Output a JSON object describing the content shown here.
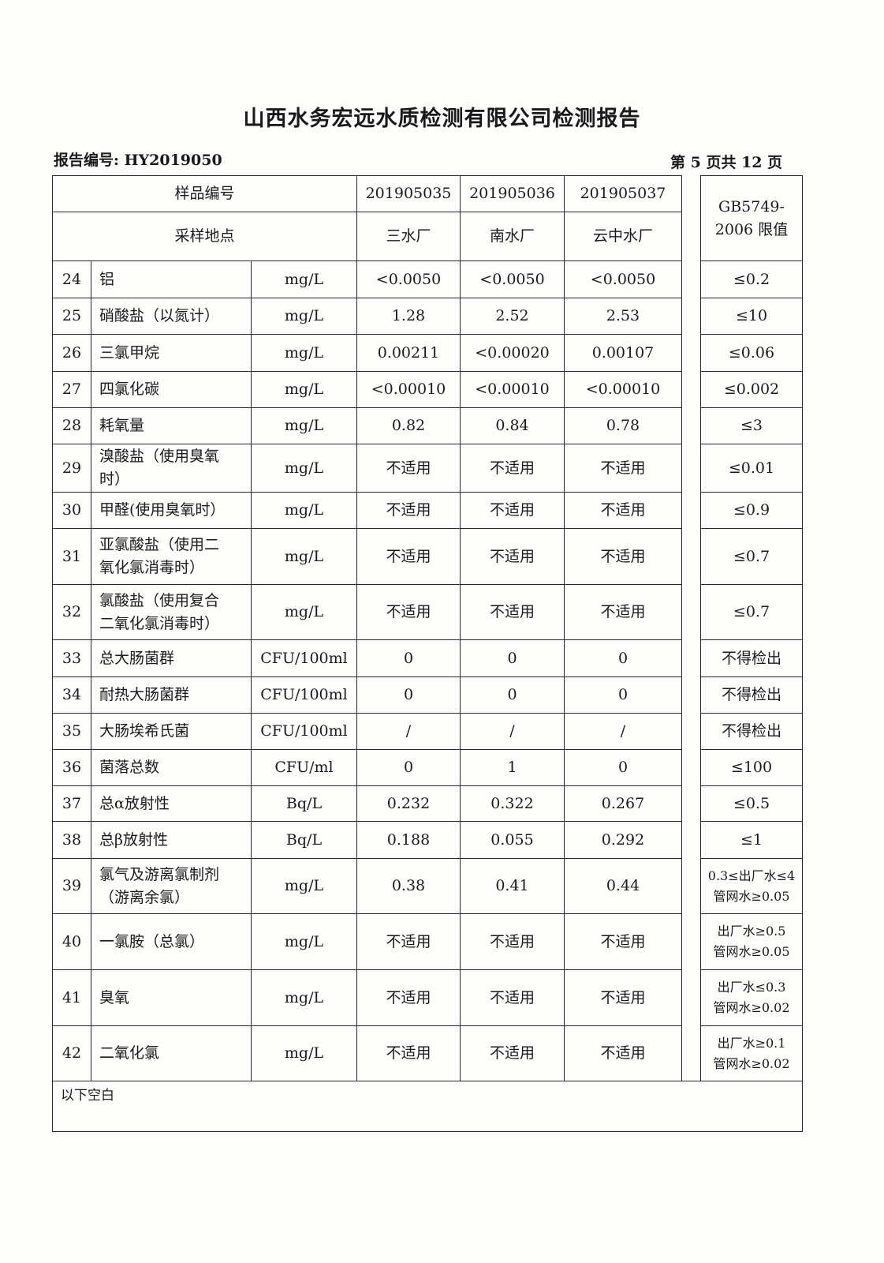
{
  "title": "山西水务宏远水质检测有限公司检测报告",
  "report_no": "报告编号: HY2019050",
  "page_no": "第 5 页共 12 页",
  "header": {
    "sample_no_label": "样品编号",
    "location_label": "采样地点",
    "samples": [
      {
        "id": "201905035",
        "location": "三水厂"
      },
      {
        "id": "201905036",
        "location": "南水厂"
      },
      {
        "id": "201905037",
        "location": "云中水厂"
      }
    ],
    "limit_label": "GB5749-\n2006 限值"
  },
  "rows": [
    {
      "no": "24",
      "item": "铝",
      "unit": "mg/L",
      "values": [
        "<0.0050",
        "<0.0050",
        "<0.0050"
      ],
      "limit": "≤0.2"
    },
    {
      "no": "25",
      "item": "硝酸盐（以氮计）",
      "unit": "mg/L",
      "values": [
        "1.28",
        "2.52",
        "2.53"
      ],
      "limit": "≤10"
    },
    {
      "no": "26",
      "item": "三氯甲烷",
      "unit": "mg/L",
      "values": [
        "0.00211",
        "<0.00020",
        "0.00107"
      ],
      "limit": "≤0.06"
    },
    {
      "no": "27",
      "item": "四氯化碳",
      "unit": "mg/L",
      "values": [
        "<0.00010",
        "<0.00010",
        "<0.00010"
      ],
      "limit": "≤0.002"
    },
    {
      "no": "28",
      "item": "耗氧量",
      "unit": "mg/L",
      "values": [
        "0.82",
        "0.84",
        "0.78"
      ],
      "limit": "≤3"
    },
    {
      "no": "29",
      "item": "溴酸盐（使用臭氧时）",
      "unit": "mg/L",
      "values": [
        "不适用",
        "不适用",
        "不适用"
      ],
      "limit": "≤0.01"
    },
    {
      "no": "30",
      "item": "甲醛(使用臭氧时）",
      "unit": "mg/L",
      "values": [
        "不适用",
        "不适用",
        "不适用"
      ],
      "limit": "≤0.9"
    },
    {
      "no": "31",
      "item": "亚氯酸盐（使用二氧化氯消毒时）",
      "unit": "mg/L",
      "values": [
        "不适用",
        "不适用",
        "不适用"
      ],
      "limit": "≤0.7"
    },
    {
      "no": "32",
      "item": "氯酸盐（使用复合二氧化氯消毒时）",
      "unit": "mg/L",
      "values": [
        "不适用",
        "不适用",
        "不适用"
      ],
      "limit": "≤0.7"
    },
    {
      "no": "33",
      "item": "总大肠菌群",
      "unit": "CFU/100ml",
      "values": [
        "0",
        "0",
        "0"
      ],
      "limit": "不得检出"
    },
    {
      "no": "34",
      "item": "耐热大肠菌群",
      "unit": "CFU/100ml",
      "values": [
        "0",
        "0",
        "0"
      ],
      "limit": "不得检出"
    },
    {
      "no": "35",
      "item": "大肠埃希氏菌",
      "unit": "CFU/100ml",
      "values": [
        "/",
        "/",
        "/"
      ],
      "limit": "不得检出"
    },
    {
      "no": "36",
      "item": "菌落总数",
      "unit": "CFU/ml",
      "values": [
        "0",
        "1",
        "0"
      ],
      "limit": "≤100"
    },
    {
      "no": "37",
      "item": "总α放射性",
      "unit": "Bq/L",
      "values": [
        "0.232",
        "0.322",
        "0.267"
      ],
      "limit": "≤0.5"
    },
    {
      "no": "38",
      "item": "总β放射性",
      "unit": "Bq/L",
      "values": [
        "0.188",
        "0.055",
        "0.292"
      ],
      "limit": "≤1"
    },
    {
      "no": "39",
      "item": "氯气及游离氯制剂（游离余氯）",
      "unit": "mg/L",
      "values": [
        "0.38",
        "0.41",
        "0.44"
      ],
      "limit": "0.3≤出厂水≤4\n管网水≥0.05"
    },
    {
      "no": "40",
      "item": "一氯胺（总氯）",
      "unit": "mg/L",
      "values": [
        "不适用",
        "不适用",
        "不适用"
      ],
      "limit": "出厂水≥0.5\n管网水≥0.05"
    },
    {
      "no": "41",
      "item": "臭氧",
      "unit": "mg/L",
      "values": [
        "不适用",
        "不适用",
        "不适用"
      ],
      "limit": "出厂水≤0.3\n管网水≥0.02"
    },
    {
      "no": "42",
      "item": "二氧化氯",
      "unit": "mg/L",
      "values": [
        "不适用",
        "不适用",
        "不适用"
      ],
      "limit": "出厂水≥0.1\n管网水≥0.02"
    }
  ],
  "footer_note": "以下空白"
}
